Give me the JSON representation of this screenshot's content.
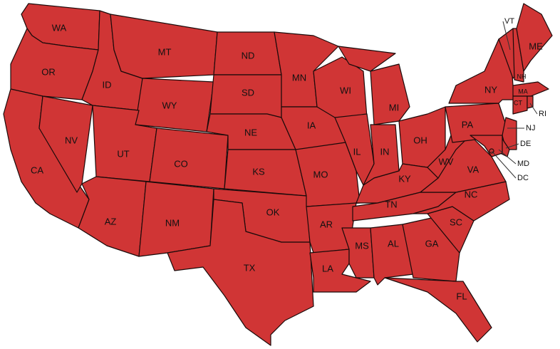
{
  "map": {
    "fill_color": "#d03535",
    "border_color": "#1a0a0a",
    "states": [
      "WA",
      "OR",
      "CA",
      "NV",
      "ID",
      "MT",
      "WY",
      "UT",
      "CO",
      "AZ",
      "NM",
      "ND",
      "SD",
      "NE",
      "KS",
      "OK",
      "TX",
      "MN",
      "IA",
      "MO",
      "AR",
      "LA",
      "WI",
      "IL",
      "IN",
      "MI",
      "OH",
      "KY",
      "TN",
      "MS",
      "AL",
      "GA",
      "FL",
      "SC",
      "NC",
      "VA",
      "WV",
      "PA",
      "NY",
      "VT",
      "NH",
      "ME",
      "MA",
      "CT",
      "RI",
      "NJ",
      "DE",
      "MD",
      "DC"
    ]
  }
}
